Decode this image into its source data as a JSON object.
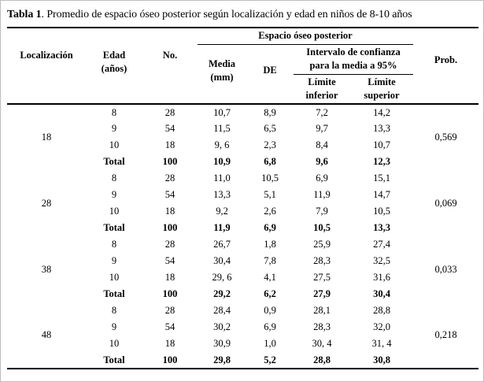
{
  "title": {
    "bold_part": "Tabla 1",
    "rest": ". Promedio de espacio óseo posterior según localización y edad en niños de 8-10 años"
  },
  "table": {
    "headers": {
      "localizacion": "Localización",
      "edad_line1": "Edad",
      "edad_line2": "(años)",
      "no": "No.",
      "espacio": "Espacio óseo posterior",
      "media_line1": "Media",
      "media_line2": "(mm)",
      "de": "DE",
      "intervalo_line1": "Intervalo de confianza",
      "intervalo_line2": "para la media a 95%",
      "limite_inferior_line1": "Límite",
      "limite_inferior_line2": "inferior",
      "limite_superior_line1": "Límite",
      "limite_superior_line2": "superior",
      "prob": "Prob."
    },
    "groups": [
      {
        "localizacion": "18",
        "prob": "0,569",
        "rows": [
          {
            "edad": "8",
            "no": "28",
            "media": "10,7",
            "de": "8,9",
            "li": "7,2",
            "ls": "14,2",
            "bold": false
          },
          {
            "edad": "9",
            "no": "54",
            "media": "11,5",
            "de": "6,5",
            "li": "9,7",
            "ls": "13,3",
            "bold": false
          },
          {
            "edad": "10",
            "no": "18",
            "media": "9, 6",
            "de": "2,3",
            "li": "8,4",
            "ls": "10,7",
            "bold": false
          },
          {
            "edad": "Total",
            "no": "100",
            "media": "10,9",
            "de": "6,8",
            "li": "9,6",
            "ls": "12,3",
            "bold": true
          }
        ]
      },
      {
        "localizacion": "28",
        "prob": "0,069",
        "rows": [
          {
            "edad": "8",
            "no": "28",
            "media": "11,0",
            "de": "10,5",
            "li": "6,9",
            "ls": "15,1",
            "bold": false
          },
          {
            "edad": "9",
            "no": "54",
            "media": "13,3",
            "de": "5,1",
            "li": "11,9",
            "ls": "14,7",
            "bold": false
          },
          {
            "edad": "10",
            "no": "18",
            "media": "9,2",
            "de": "2,6",
            "li": "7,9",
            "ls": "10,5",
            "bold": false
          },
          {
            "edad": "Total",
            "no": "100",
            "media": "11,9",
            "de": "6,9",
            "li": "10,5",
            "ls": "13,3",
            "bold": true
          }
        ]
      },
      {
        "localizacion": "38",
        "prob": "0,033",
        "rows": [
          {
            "edad": "8",
            "no": "28",
            "media": "26,7",
            "de": "1,8",
            "li": "25,9",
            "ls": "27,4",
            "bold": false
          },
          {
            "edad": "9",
            "no": "54",
            "media": "30,4",
            "de": "7,8",
            "li": "28,3",
            "ls": "32,5",
            "bold": false
          },
          {
            "edad": "10",
            "no": "18",
            "media": "29, 6",
            "de": "4,1",
            "li": "27,5",
            "ls": "31,6",
            "bold": false
          },
          {
            "edad": "Total",
            "no": "100",
            "media": "29,2",
            "de": "6,2",
            "li": "27,9",
            "ls": "30,4",
            "bold": true
          }
        ]
      },
      {
        "localizacion": "48",
        "prob": "0,218",
        "rows": [
          {
            "edad": "8",
            "no": "28",
            "media": "28,4",
            "de": "0,9",
            "li": "28,1",
            "ls": "28,8",
            "bold": false
          },
          {
            "edad": "9",
            "no": "54",
            "media": "30,2",
            "de": "6,9",
            "li": "28,3",
            "ls": "32,0",
            "bold": false
          },
          {
            "edad": "10",
            "no": "18",
            "media": "30,9",
            "de": "1,0",
            "li": "30, 4",
            "ls": "31, 4",
            "bold": false
          },
          {
            "edad": "Total",
            "no": "100",
            "media": "29,8",
            "de": "5,2",
            "li": "28,8",
            "ls": "30,8",
            "bold": true
          }
        ]
      }
    ]
  },
  "colors": {
    "text": "#000000",
    "background": "#ffffff",
    "rule": "#000000",
    "frame_border": "#bdbdbd"
  }
}
